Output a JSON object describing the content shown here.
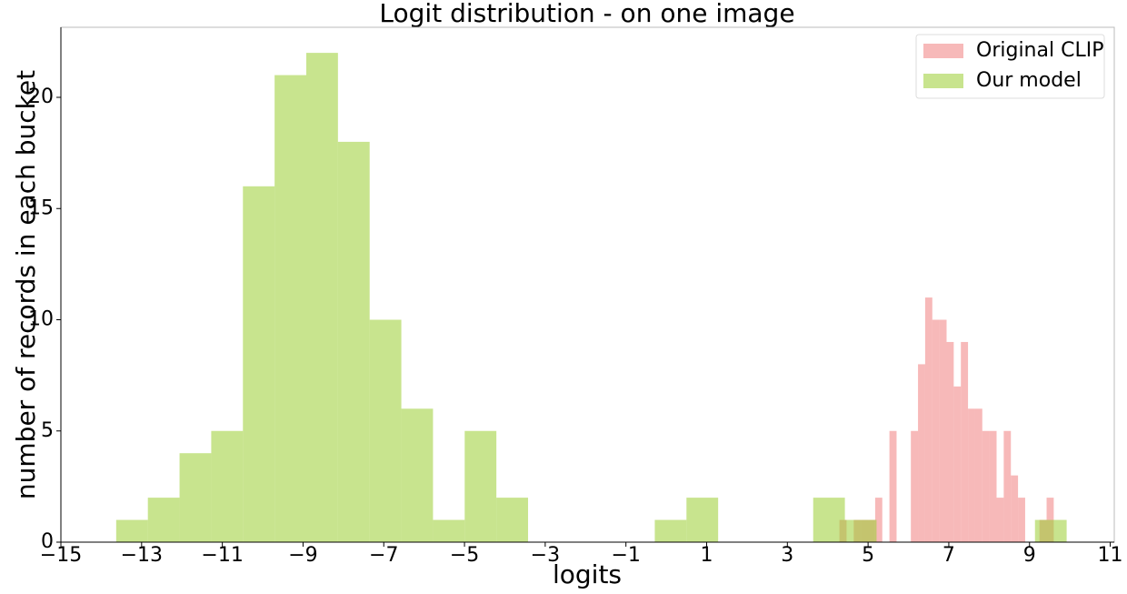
{
  "chart_data": {
    "type": "histogram",
    "title": "Logit distribution - on one image",
    "xlabel": "logits",
    "ylabel": "number of records in each bucket",
    "legend": "upper right",
    "xlim": [
      -15,
      11.1
    ],
    "ylim": [
      0,
      23.15
    ],
    "xticks": [
      {
        "value": -15,
        "label": "−15"
      },
      {
        "value": -13,
        "label": "−13"
      },
      {
        "value": -11,
        "label": "−11"
      },
      {
        "value": -9,
        "label": "−9"
      },
      {
        "value": -7,
        "label": "−7"
      },
      {
        "value": -5,
        "label": "−5"
      },
      {
        "value": -3,
        "label": "−3"
      },
      {
        "value": -1,
        "label": "−1"
      },
      1,
      3,
      5,
      7,
      9,
      11
    ],
    "yticks": [
      0,
      5,
      10,
      15,
      20
    ],
    "series": [
      {
        "name": "Original CLIP",
        "color": "#f08080",
        "bins": [
          4.29,
          4.467,
          4.644,
          4.821,
          4.998,
          5.175,
          5.352,
          5.529,
          5.706,
          5.883,
          6.06,
          6.237,
          6.414,
          6.591,
          6.768,
          6.945,
          7.122,
          7.299,
          7.476,
          7.653,
          7.83,
          8.007,
          8.184,
          8.361,
          8.538,
          8.715,
          8.892,
          9.069,
          9.246,
          9.423,
          9.6
        ],
        "values": [
          1,
          0,
          1,
          1,
          1,
          2,
          0,
          5,
          0,
          0,
          5,
          8,
          11,
          10,
          10,
          9,
          7,
          9,
          6,
          6,
          5,
          5,
          2,
          5,
          3,
          2,
          0,
          0,
          1,
          2
        ]
      },
      {
        "name": "Our model",
        "color": "#9acd32",
        "bins": [
          -13.63,
          -12.845,
          -12.06,
          -11.275,
          -10.49,
          -9.705,
          -8.92,
          -8.135,
          -7.35,
          -6.565,
          -5.78,
          -4.995,
          -4.21,
          -3.425,
          -2.64,
          -1.855,
          -1.07,
          -0.285,
          0.5,
          1.285,
          2.07,
          2.855,
          3.64,
          4.425,
          5.21,
          5.995,
          6.78,
          7.565,
          8.35,
          9.135,
          9.92
        ],
        "values": [
          1,
          2,
          4,
          5,
          16,
          21,
          22,
          18,
          10,
          6,
          1,
          5,
          2,
          0,
          0,
          0,
          0,
          1,
          2,
          0,
          0,
          0,
          2,
          1,
          0,
          0,
          0,
          0,
          0,
          1
        ]
      }
    ]
  }
}
